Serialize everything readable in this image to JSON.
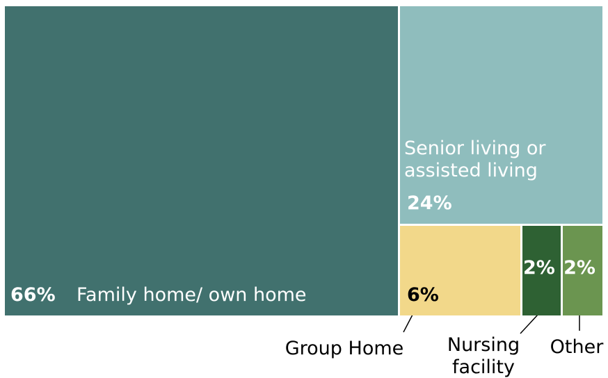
{
  "chart_data": {
    "type": "treemap",
    "categories": [
      "Family home/ own home",
      "Senior living or assisted living",
      "Group Home",
      "Nursing facility",
      "Other"
    ],
    "values": [
      66,
      24,
      6,
      2,
      2
    ],
    "value_labels": [
      "66%",
      "24%",
      "6%",
      "2%",
      "2%"
    ],
    "colors": [
      "#41716e",
      "#8fbdbd",
      "#f2d88a",
      "#2e6133",
      "#6b9550"
    ]
  }
}
